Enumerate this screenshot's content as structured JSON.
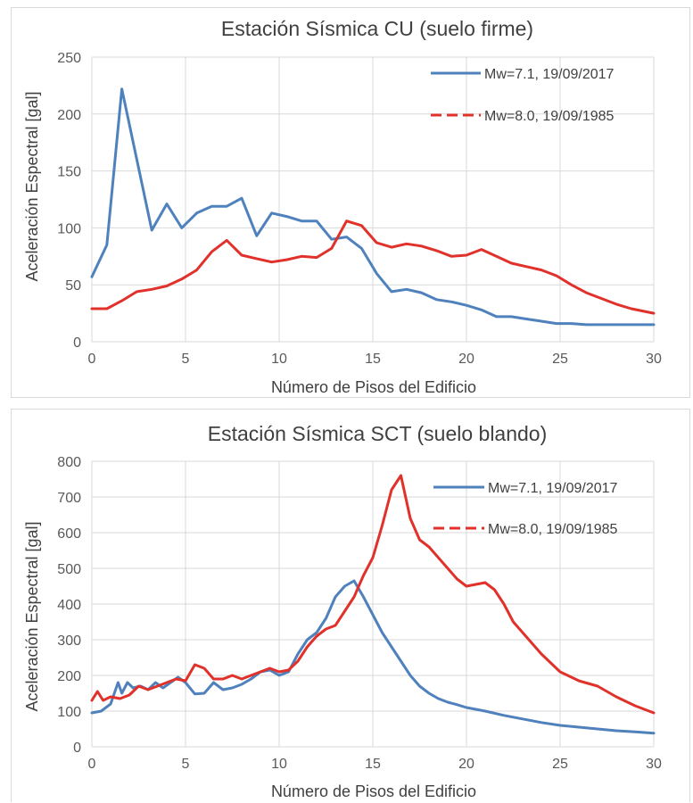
{
  "chart_data": [
    {
      "type": "line",
      "title": "Estación Sísmica CU (suelo firme)",
      "xlabel": "Número de Pisos del Edificio",
      "ylabel": "Aceleración Espectral [gal]",
      "xlim": [
        0,
        30
      ],
      "ylim": [
        0,
        250
      ],
      "xticks": [
        "0",
        "5",
        "10",
        "15",
        "20",
        "25",
        "30"
      ],
      "yticks": [
        "0",
        "50",
        "100",
        "150",
        "200",
        "250"
      ],
      "grid": true,
      "legend_position": "top-right",
      "series": [
        {
          "name": "Mw=7.1, 19/09/2017",
          "color": "#4f81bd",
          "dash": "solid",
          "x": [
            0,
            0.8,
            1.6,
            2.4,
            3.2,
            4.0,
            4.8,
            5.6,
            6.4,
            7.2,
            8.0,
            8.8,
            9.6,
            10.4,
            11.2,
            12.0,
            12.8,
            13.6,
            14.4,
            15.2,
            16.0,
            16.8,
            17.6,
            18.4,
            19.2,
            20.0,
            20.8,
            21.6,
            22.4,
            23.2,
            24.0,
            24.8,
            25.6,
            26.4,
            27.2,
            28.0,
            28.8,
            30.0
          ],
          "y": [
            57,
            85,
            222,
            160,
            98,
            121,
            100,
            113,
            119,
            119,
            126,
            93,
            113,
            110,
            106,
            106,
            90,
            92,
            82,
            60,
            44,
            46,
            43,
            37,
            35,
            32,
            28,
            22,
            22,
            20,
            18,
            16,
            16,
            15,
            15,
            15,
            15,
            15
          ]
        },
        {
          "name": "Mw=8.0, 19/09/1985",
          "color": "#e0312b",
          "dash": "dashed",
          "x": [
            0,
            0.8,
            1.6,
            2.4,
            3.2,
            4.0,
            4.8,
            5.6,
            6.4,
            7.2,
            8.0,
            8.8,
            9.6,
            10.4,
            11.2,
            12.0,
            12.8,
            13.6,
            14.4,
            15.2,
            16.0,
            16.8,
            17.6,
            18.4,
            19.2,
            20.0,
            20.8,
            21.6,
            22.4,
            23.2,
            24.0,
            24.8,
            25.6,
            26.4,
            27.2,
            28.0,
            28.8,
            30.0
          ],
          "y": [
            29,
            29,
            36,
            44,
            46,
            49,
            55,
            63,
            79,
            89,
            76,
            73,
            70,
            72,
            75,
            74,
            82,
            106,
            102,
            87,
            83,
            86,
            84,
            80,
            75,
            76,
            81,
            75,
            69,
            66,
            63,
            58,
            50,
            43,
            38,
            33,
            29,
            25
          ]
        }
      ]
    },
    {
      "type": "line",
      "title": "Estación Sísmica SCT (suelo blando)",
      "xlabel": "Número de Pisos del Edificio",
      "ylabel": "Aceleración Espectral [gal]",
      "xlim": [
        0,
        30
      ],
      "ylim": [
        0,
        800
      ],
      "xticks": [
        "0",
        "5",
        "10",
        "15",
        "20",
        "25",
        "30"
      ],
      "yticks": [
        "0",
        "100",
        "200",
        "300",
        "400",
        "500",
        "600",
        "700",
        "800"
      ],
      "grid": true,
      "legend_position": "top-right",
      "series": [
        {
          "name": "Mw=7.1, 19/09/2017",
          "color": "#4f81bd",
          "dash": "solid",
          "x": [
            0,
            0.5,
            1.0,
            1.4,
            1.6,
            1.9,
            2.2,
            2.6,
            3.0,
            3.4,
            3.8,
            4.2,
            4.6,
            5.0,
            5.5,
            6.0,
            6.5,
            7.0,
            7.5,
            8.0,
            8.5,
            9.0,
            9.5,
            10.0,
            10.5,
            11.0,
            11.5,
            12.0,
            12.5,
            13.0,
            13.5,
            14.0,
            14.5,
            15.0,
            15.5,
            16.0,
            16.5,
            17.0,
            17.5,
            18.0,
            18.5,
            19.0,
            19.5,
            20.0,
            21.0,
            22.0,
            23.0,
            24.0,
            25.0,
            26.0,
            27.0,
            28.0,
            29.0,
            30.0
          ],
          "y": [
            95,
            100,
            120,
            180,
            150,
            180,
            165,
            170,
            160,
            180,
            165,
            180,
            195,
            180,
            148,
            150,
            180,
            160,
            165,
            175,
            190,
            210,
            215,
            200,
            210,
            260,
            300,
            320,
            360,
            420,
            450,
            465,
            420,
            370,
            320,
            280,
            240,
            200,
            170,
            150,
            135,
            125,
            118,
            110,
            100,
            88,
            78,
            68,
            60,
            55,
            50,
            45,
            42,
            38
          ]
        },
        {
          "name": "Mw=8.0, 19/09/1985",
          "color": "#e0312b",
          "dash": "dashed",
          "x": [
            0,
            0.3,
            0.6,
            1.0,
            1.5,
            2.0,
            2.5,
            3.0,
            3.5,
            4.0,
            4.5,
            5.0,
            5.5,
            6.0,
            6.5,
            7.0,
            7.5,
            8.0,
            8.5,
            9.0,
            9.5,
            10.0,
            10.5,
            11.0,
            11.5,
            12.0,
            12.5,
            13.0,
            13.5,
            14.0,
            14.5,
            15.0,
            15.5,
            16.0,
            16.5,
            17.0,
            17.5,
            18.0,
            18.5,
            19.0,
            19.5,
            20.0,
            20.5,
            21.0,
            21.5,
            22.0,
            22.5,
            23.0,
            24.0,
            25.0,
            26.0,
            27.0,
            28.0,
            29.0,
            30.0
          ],
          "y": [
            130,
            155,
            130,
            140,
            135,
            145,
            170,
            160,
            170,
            180,
            190,
            185,
            230,
            220,
            190,
            190,
            200,
            190,
            200,
            210,
            220,
            210,
            215,
            240,
            280,
            310,
            330,
            340,
            380,
            420,
            480,
            530,
            620,
            720,
            760,
            640,
            580,
            560,
            530,
            500,
            470,
            450,
            455,
            460,
            440,
            400,
            350,
            320,
            260,
            210,
            185,
            170,
            140,
            115,
            95
          ]
        }
      ]
    }
  ]
}
